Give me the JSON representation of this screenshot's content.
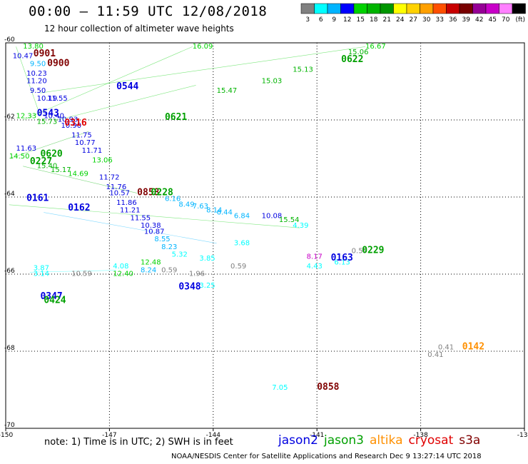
{
  "title": "00:00 – 11:59 UTC 12/08/2018",
  "subtitle": "12 hour collection of altimeter wave heights",
  "color_scale": {
    "labels": [
      "3",
      "6",
      "9",
      "12",
      "15",
      "18",
      "21",
      "24",
      "27",
      "30",
      "33",
      "36",
      "39",
      "42",
      "45",
      "70",
      "(ft)"
    ],
    "colors": [
      "#808080",
      "#00ffff",
      "#00b4ff",
      "#0000ff",
      "#00d200",
      "#00b400",
      "#009600",
      "#ffff00",
      "#ffd200",
      "#ffa000",
      "#ff5000",
      "#c80000",
      "#780000",
      "#960096",
      "#c800c8",
      "#ff80ff",
      "#000000"
    ]
  },
  "footer_note": "note:  1) Time is in UTC;  2) SWH is in feet",
  "satellites": [
    {
      "name": "jason2",
      "color": "#0000e0"
    },
    {
      "name": "jason3",
      "color": "#00a000"
    },
    {
      "name": "altika",
      "color": "#ff9000"
    },
    {
      "name": "cryosat",
      "color": "#e00000"
    },
    {
      "name": "s3a",
      "color": "#800000"
    }
  ],
  "credit": "NOAA/NESDIS Center for Satellite Applications and Research    Dec  9 13:27:14 UTC 2018",
  "chart_data": {
    "type": "scatter",
    "xlim": [
      -150,
      -135
    ],
    "ylim": [
      -70,
      -60
    ],
    "x_ticks": [
      -150,
      -147,
      -144,
      -141,
      -138,
      -135
    ],
    "y_ticks": [
      -60,
      -62,
      -64,
      -66,
      -68,
      -70
    ],
    "x_tick_labels": [
      "-150",
      "-147",
      "-144",
      "-141",
      "-138",
      "-135"
    ],
    "y_tick_labels": [
      "-60",
      "-62",
      "-64",
      "-66",
      "-68",
      "-70"
    ],
    "grid": true,
    "time_labels": [
      {
        "text": "0901",
        "x": -149.2,
        "y": -60.35,
        "color": "#800000"
      },
      {
        "text": "0900",
        "x": -148.8,
        "y": -60.6,
        "color": "#800000"
      },
      {
        "text": "0544",
        "x": -146.8,
        "y": -61.2,
        "color": "#0000e0"
      },
      {
        "text": "0622",
        "x": -140.3,
        "y": -60.5,
        "color": "#00a000"
      },
      {
        "text": "0543",
        "x": -149.1,
        "y": -61.9,
        "color": "#0000e0"
      },
      {
        "text": "0621",
        "x": -145.4,
        "y": -62.0,
        "color": "#00a000"
      },
      {
        "text": "0316",
        "x": -148.3,
        "y": -62.15,
        "color": "#e00000"
      },
      {
        "text": "0620",
        "x": -149.0,
        "y": -62.95,
        "color": "#00a000"
      },
      {
        "text": "0227",
        "x": -149.3,
        "y": -63.15,
        "color": "#00a000"
      },
      {
        "text": "0858",
        "x": -146.2,
        "y": -63.95,
        "color": "#800000"
      },
      {
        "text": "0228",
        "x": -145.8,
        "y": -63.95,
        "color": "#00a000"
      },
      {
        "text": "0161",
        "x": -149.4,
        "y": -64.1,
        "color": "#0000e0"
      },
      {
        "text": "0162",
        "x": -148.2,
        "y": -64.35,
        "color": "#0000e0"
      },
      {
        "text": "0229",
        "x": -139.7,
        "y": -65.45,
        "color": "#00a000"
      },
      {
        "text": "0163",
        "x": -140.6,
        "y": -65.65,
        "color": "#0000e0"
      },
      {
        "text": "0348",
        "x": -145.0,
        "y": -66.4,
        "color": "#0000e0"
      },
      {
        "text": "0347",
        "x": -149.0,
        "y": -66.65,
        "color": "#0000e0"
      },
      {
        "text": "0424",
        "x": -148.9,
        "y": -66.75,
        "color": "#00a000"
      },
      {
        "text": "0142",
        "x": -136.8,
        "y": -67.95,
        "color": "#ff9000"
      },
      {
        "text": "0858",
        "x": -141.0,
        "y": -69.0,
        "color": "#800000"
      }
    ],
    "swh_labels": [
      {
        "text": "13.80",
        "x": -149.5,
        "y": -60.15,
        "color": "#00d200"
      },
      {
        "text": "10.47",
        "x": -149.8,
        "y": -60.4,
        "color": "#0000e0"
      },
      {
        "text": "9.50",
        "x": -149.3,
        "y": -60.6,
        "color": "#00b4ff"
      },
      {
        "text": "10.23",
        "x": -149.4,
        "y": -60.85,
        "color": "#0000e0"
      },
      {
        "text": "11.20",
        "x": -149.4,
        "y": -61.05,
        "color": "#0000e0"
      },
      {
        "text": "9.50",
        "x": -149.3,
        "y": -61.3,
        "color": "#0000e0"
      },
      {
        "text": "10.19",
        "x": -149.1,
        "y": -61.5,
        "color": "#0000e0"
      },
      {
        "text": "11.55",
        "x": -148.8,
        "y": -61.5,
        "color": "#0000e0"
      },
      {
        "text": "10.40",
        "x": -148.9,
        "y": -61.95,
        "color": "#0000e0"
      },
      {
        "text": "12.33",
        "x": -149.7,
        "y": -61.95,
        "color": "#00d200"
      },
      {
        "text": "15.73",
        "x": -149.1,
        "y": -62.1,
        "color": "#00b400"
      },
      {
        "text": "10.93",
        "x": -148.5,
        "y": -62.05,
        "color": "#0000e0"
      },
      {
        "text": "10.90",
        "x": -148.4,
        "y": -62.2,
        "color": "#0000e0"
      },
      {
        "text": "11.75",
        "x": -148.1,
        "y": -62.45,
        "color": "#0000e0"
      },
      {
        "text": "10.77",
        "x": -148.0,
        "y": -62.65,
        "color": "#0000e0"
      },
      {
        "text": "11.71",
        "x": -147.8,
        "y": -62.85,
        "color": "#0000e0"
      },
      {
        "text": "13.06",
        "x": -147.5,
        "y": -63.1,
        "color": "#00d200"
      },
      {
        "text": "11.72",
        "x": -147.3,
        "y": -63.55,
        "color": "#0000e0"
      },
      {
        "text": "11.63",
        "x": -149.7,
        "y": -62.8,
        "color": "#0000e0"
      },
      {
        "text": "14.50",
        "x": -149.9,
        "y": -63.0,
        "color": "#00d200"
      },
      {
        "text": "15.40",
        "x": -149.1,
        "y": -63.25,
        "color": "#00b400"
      },
      {
        "text": "15.17",
        "x": -148.7,
        "y": -63.35,
        "color": "#00b400"
      },
      {
        "text": "14.69",
        "x": -148.2,
        "y": -63.45,
        "color": "#00d200"
      },
      {
        "text": "11.76",
        "x": -147.1,
        "y": -63.8,
        "color": "#0000e0"
      },
      {
        "text": "10.57",
        "x": -147.0,
        "y": -63.95,
        "color": "#0000e0"
      },
      {
        "text": "11.86",
        "x": -146.8,
        "y": -64.2,
        "color": "#0000e0"
      },
      {
        "text": "11.21",
        "x": -146.7,
        "y": -64.4,
        "color": "#0000e0"
      },
      {
        "text": "11.55",
        "x": -146.4,
        "y": -64.6,
        "color": "#0000e0"
      },
      {
        "text": "10.38",
        "x": -146.1,
        "y": -64.8,
        "color": "#0000e0"
      },
      {
        "text": "10.87",
        "x": -146.0,
        "y": -64.95,
        "color": "#0000e0"
      },
      {
        "text": "8.55",
        "x": -145.7,
        "y": -65.15,
        "color": "#00b4ff"
      },
      {
        "text": "8.23",
        "x": -145.5,
        "y": -65.35,
        "color": "#00b4ff"
      },
      {
        "text": "5.32",
        "x": -145.2,
        "y": -65.55,
        "color": "#00ffff"
      },
      {
        "text": "3.85",
        "x": -144.4,
        "y": -65.65,
        "color": "#00ffff"
      },
      {
        "text": "1.96",
        "x": -144.7,
        "y": -66.05,
        "color": "#808080"
      },
      {
        "text": "3.25",
        "x": -144.4,
        "y": -66.35,
        "color": "#00ffff"
      },
      {
        "text": "12.48",
        "x": -146.1,
        "y": -65.75,
        "color": "#00d200"
      },
      {
        "text": "8.24",
        "x": -146.1,
        "y": -65.95,
        "color": "#00b4ff"
      },
      {
        "text": "0.59",
        "x": -145.5,
        "y": -65.95,
        "color": "#808080"
      },
      {
        "text": "0.59",
        "x": -143.5,
        "y": -65.85,
        "color": "#808080"
      },
      {
        "text": "3.87",
        "x": -149.2,
        "y": -65.9,
        "color": "#00ffff"
      },
      {
        "text": "3.14",
        "x": -149.2,
        "y": -66.05,
        "color": "#00ffff"
      },
      {
        "text": "4.08",
        "x": -146.9,
        "y": -65.85,
        "color": "#00ffff"
      },
      {
        "text": "12.40",
        "x": -146.9,
        "y": -66.05,
        "color": "#00d200"
      },
      {
        "text": "10.59",
        "x": -148.1,
        "y": -66.05,
        "color": "#808080"
      },
      {
        "text": "6.16",
        "x": -145.4,
        "y": -64.1,
        "color": "#00b4ff"
      },
      {
        "text": "8.49",
        "x": -145.0,
        "y": -64.25,
        "color": "#00b4ff"
      },
      {
        "text": "7.63",
        "x": -144.6,
        "y": -64.3,
        "color": "#00b4ff"
      },
      {
        "text": "8.14",
        "x": -144.2,
        "y": -64.4,
        "color": "#00b4ff"
      },
      {
        "text": "6.44",
        "x": -143.9,
        "y": -64.45,
        "color": "#00b4ff"
      },
      {
        "text": "6.84",
        "x": -143.4,
        "y": -64.55,
        "color": "#00b4ff"
      },
      {
        "text": "10.08",
        "x": -142.6,
        "y": -64.55,
        "color": "#0000e0"
      },
      {
        "text": "15.54",
        "x": -142.1,
        "y": -64.65,
        "color": "#00b400"
      },
      {
        "text": "4.39",
        "x": -141.7,
        "y": -64.8,
        "color": "#00ffff"
      },
      {
        "text": "3.68",
        "x": -143.4,
        "y": -65.25,
        "color": "#00ffff"
      },
      {
        "text": "0.59",
        "x": -140.0,
        "y": -65.45,
        "color": "#808080"
      },
      {
        "text": "4.43",
        "x": -141.3,
        "y": -65.85,
        "color": "#00ffff"
      },
      {
        "text": "6.13",
        "x": -140.5,
        "y": -65.75,
        "color": "#00ffff"
      },
      {
        "text": "8.17",
        "x": -141.3,
        "y": -65.6,
        "color": "#c800c8"
      },
      {
        "text": "16.09",
        "x": -144.6,
        "y": -60.15,
        "color": "#00d200"
      },
      {
        "text": "15.47",
        "x": -143.9,
        "y": -61.3,
        "color": "#00b400"
      },
      {
        "text": "15.03",
        "x": -142.6,
        "y": -61.05,
        "color": "#00b400"
      },
      {
        "text": "15.13",
        "x": -141.7,
        "y": -60.75,
        "color": "#00b400"
      },
      {
        "text": "16.67",
        "x": -139.6,
        "y": -60.15,
        "color": "#00d200"
      },
      {
        "text": "15.06",
        "x": -140.1,
        "y": -60.3,
        "color": "#00b400"
      },
      {
        "text": "0.41",
        "x": -137.5,
        "y": -67.95,
        "color": "#808080"
      },
      {
        "text": "0.41",
        "x": -137.8,
        "y": -68.15,
        "color": "#808080"
      },
      {
        "text": "7.05",
        "x": -142.3,
        "y": -69.0,
        "color": "#00ffff"
      }
    ],
    "tracks": [
      {
        "color": "#00d200",
        "x": [
          -149.5,
          -144.6
        ],
        "y": [
          -62.0,
          -60.1
        ]
      },
      {
        "color": "#00d200",
        "x": [
          -149.0,
          -139.6
        ],
        "y": [
          -61.3,
          -60.1
        ]
      },
      {
        "color": "#00d200",
        "x": [
          -148.5,
          -144.5
        ],
        "y": [
          -62.0,
          -61.1
        ]
      },
      {
        "color": "#00b400",
        "x": [
          -149.9,
          -147.6
        ],
        "y": [
          -63.0,
          -62.3
        ]
      },
      {
        "color": "#00b400",
        "x": [
          -149.5,
          -146.2
        ],
        "y": [
          -63.2,
          -63.9
        ]
      },
      {
        "color": "#00d200",
        "x": [
          -149.9,
          -141.5
        ],
        "y": [
          -64.2,
          -64.8
        ]
      },
      {
        "color": "#00b4ff",
        "x": [
          -148.9,
          -143.9
        ],
        "y": [
          -64.4,
          -65.2
        ]
      },
      {
        "color": "#00ffff",
        "x": [
          -149.3,
          -146.8
        ],
        "y": [
          -65.95,
          -65.9
        ]
      },
      {
        "color": "#00d200",
        "x": [
          -149.7,
          -149.0
        ],
        "y": [
          -60.1,
          -61.9
        ]
      }
    ]
  }
}
